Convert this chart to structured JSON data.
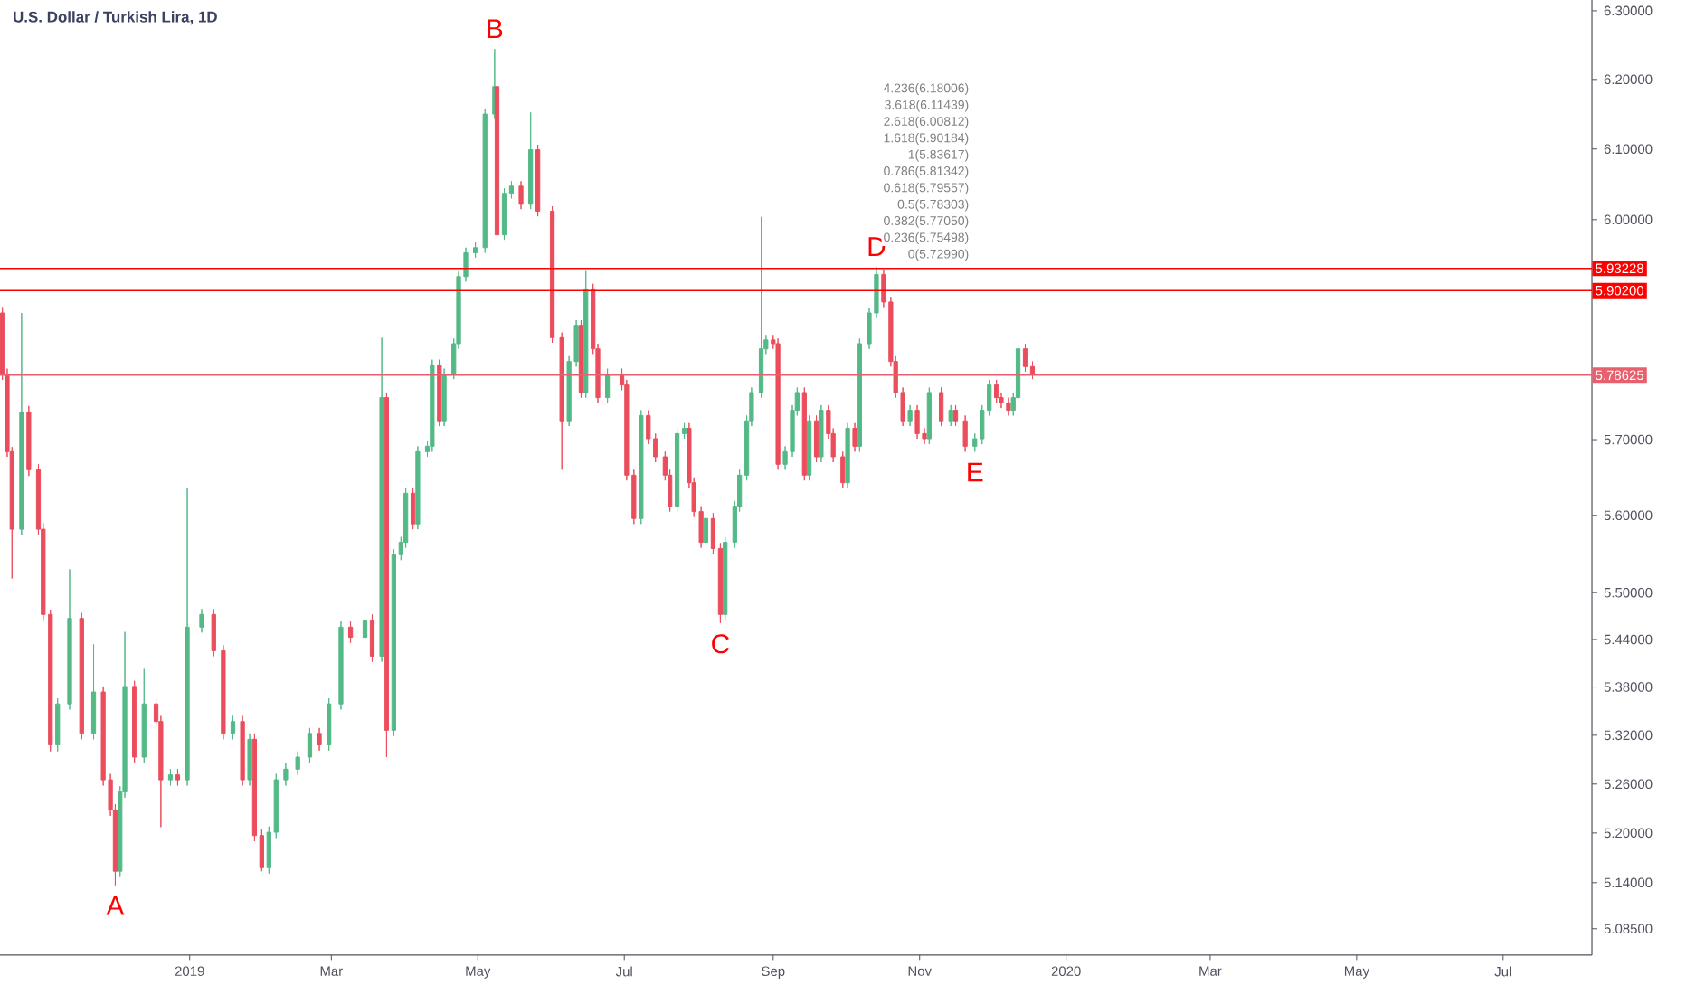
{
  "chart_data": {
    "type": "candlestick",
    "title": "U.S. Dollar / Turkish Lira, 1D",
    "x": [
      "2018-10-15",
      "2018-10-17",
      "2018-10-19",
      "2018-10-23",
      "2018-10-26",
      "2018-10-30",
      "2018-11-01",
      "2018-11-04",
      "2018-11-07",
      "2018-11-12",
      "2018-11-17",
      "2018-11-22",
      "2018-11-26",
      "2018-11-29",
      "2018-12-01",
      "2018-12-03",
      "2018-12-05",
      "2018-12-09",
      "2018-12-13",
      "2018-12-18",
      "2018-12-20",
      "2018-12-24",
      "2018-12-27",
      "2018-12-31",
      "2019-01-06",
      "2019-01-11",
      "2019-01-15",
      "2019-01-19",
      "2019-01-23",
      "2019-01-26",
      "2019-01-28",
      "2019-01-31",
      "2019-02-03",
      "2019-02-06",
      "2019-02-10",
      "2019-02-15",
      "2019-02-20",
      "2019-02-24",
      "2019-02-28",
      "2019-03-05",
      "2019-03-09",
      "2019-03-15",
      "2019-03-18",
      "2019-03-22",
      "2019-03-24",
      "2019-03-27",
      "2019-03-30",
      "2019-04-01",
      "2019-04-04",
      "2019-04-06",
      "2019-04-10",
      "2019-04-12",
      "2019-04-15",
      "2019-04-17",
      "2019-04-21",
      "2019-04-23",
      "2019-04-26",
      "2019-04-30",
      "2019-05-04",
      "2019-05-08",
      "2019-05-09",
      "2019-05-12",
      "2019-05-15",
      "2019-05-19",
      "2019-05-23",
      "2019-05-26",
      "2019-06-01",
      "2019-06-05",
      "2019-06-08",
      "2019-06-11",
      "2019-06-13",
      "2019-06-15",
      "2019-06-18",
      "2019-06-20",
      "2019-06-24",
      "2019-06-30",
      "2019-07-02",
      "2019-07-05",
      "2019-07-08",
      "2019-07-11",
      "2019-07-14",
      "2019-07-18",
      "2019-07-20",
      "2019-07-23",
      "2019-07-26",
      "2019-07-28",
      "2019-07-30",
      "2019-08-02",
      "2019-08-04",
      "2019-08-07",
      "2019-08-10",
      "2019-08-12",
      "2019-08-16",
      "2019-08-18",
      "2019-08-21",
      "2019-08-23",
      "2019-08-27",
      "2019-08-29",
      "2019-09-01",
      "2019-09-03",
      "2019-09-06",
      "2019-09-09",
      "2019-09-11",
      "2019-09-14",
      "2019-09-16",
      "2019-09-19",
      "2019-09-21",
      "2019-09-24",
      "2019-09-26",
      "2019-09-30",
      "2019-10-02",
      "2019-10-05",
      "2019-10-07",
      "2019-10-11",
      "2019-10-14",
      "2019-10-17",
      "2019-10-20",
      "2019-10-22",
      "2019-10-25",
      "2019-10-28",
      "2019-10-31",
      "2019-11-03",
      "2019-11-05",
      "2019-11-10",
      "2019-11-14",
      "2019-11-16",
      "2019-11-20",
      "2019-11-24",
      "2019-11-27",
      "2019-11-30",
      "2019-12-03",
      "2019-12-05",
      "2019-12-08",
      "2019-12-10",
      "2019-12-12",
      "2019-12-15",
      "2019-12-18"
    ],
    "ohlc": [
      [
        5.871,
        5.879,
        5.78,
        5.788
      ],
      [
        5.788,
        5.795,
        5.677,
        5.684
      ],
      [
        5.684,
        5.69,
        5.518,
        5.582
      ],
      [
        5.582,
        5.871,
        5.575,
        5.737
      ],
      [
        5.737,
        5.745,
        5.652,
        5.66
      ],
      [
        5.66,
        5.667,
        5.575,
        5.582
      ],
      [
        5.582,
        5.59,
        5.465,
        5.472
      ],
      [
        5.472,
        5.478,
        5.3,
        5.308
      ],
      [
        5.308,
        5.366,
        5.3,
        5.359
      ],
      [
        5.359,
        5.53,
        5.352,
        5.467
      ],
      [
        5.467,
        5.474,
        5.315,
        5.322
      ],
      [
        5.322,
        5.434,
        5.315,
        5.374
      ],
      [
        5.374,
        5.381,
        5.258,
        5.265
      ],
      [
        5.265,
        5.272,
        5.221,
        5.228
      ],
      [
        5.228,
        5.235,
        5.137,
        5.154
      ],
      [
        5.154,
        5.257,
        5.148,
        5.25
      ],
      [
        5.25,
        5.45,
        5.243,
        5.381
      ],
      [
        5.381,
        5.388,
        5.286,
        5.293
      ],
      [
        5.293,
        5.403,
        5.286,
        5.359
      ],
      [
        5.359,
        5.366,
        5.33,
        5.337
      ],
      [
        5.337,
        5.344,
        5.207,
        5.265
      ],
      [
        5.265,
        5.278,
        5.258,
        5.271
      ],
      [
        5.271,
        5.278,
        5.258,
        5.265
      ],
      [
        5.265,
        5.636,
        5.258,
        5.456
      ],
      [
        5.456,
        5.479,
        5.449,
        5.472
      ],
      [
        5.472,
        5.479,
        5.419,
        5.426
      ],
      [
        5.426,
        5.433,
        5.315,
        5.322
      ],
      [
        5.322,
        5.344,
        5.315,
        5.337
      ],
      [
        5.337,
        5.344,
        5.258,
        5.265
      ],
      [
        5.265,
        5.322,
        5.258,
        5.315
      ],
      [
        5.315,
        5.322,
        5.19,
        5.197
      ],
      [
        5.197,
        5.204,
        5.154,
        5.158
      ],
      [
        5.158,
        5.208,
        5.151,
        5.201
      ],
      [
        5.201,
        5.272,
        5.194,
        5.265
      ],
      [
        5.265,
        5.285,
        5.258,
        5.278
      ],
      [
        5.278,
        5.3,
        5.271,
        5.293
      ],
      [
        5.293,
        5.329,
        5.286,
        5.322
      ],
      [
        5.322,
        5.329,
        5.301,
        5.308
      ],
      [
        5.308,
        5.366,
        5.301,
        5.359
      ],
      [
        5.359,
        5.463,
        5.352,
        5.456
      ],
      [
        5.456,
        5.463,
        5.436,
        5.443
      ],
      [
        5.443,
        5.472,
        5.436,
        5.465
      ],
      [
        5.465,
        5.472,
        5.412,
        5.419
      ],
      [
        5.419,
        5.837,
        5.412,
        5.756
      ],
      [
        5.756,
        5.763,
        5.293,
        5.326
      ],
      [
        5.326,
        5.556,
        5.319,
        5.549
      ],
      [
        5.549,
        5.572,
        5.542,
        5.565
      ],
      [
        5.565,
        5.636,
        5.558,
        5.629
      ],
      [
        5.629,
        5.636,
        5.582,
        5.589
      ],
      [
        5.589,
        5.691,
        5.582,
        5.684
      ],
      [
        5.684,
        5.698,
        5.677,
        5.691
      ],
      [
        5.691,
        5.807,
        5.684,
        5.8
      ],
      [
        5.8,
        5.807,
        5.718,
        5.725
      ],
      [
        5.725,
        5.795,
        5.718,
        5.788
      ],
      [
        5.788,
        5.836,
        5.781,
        5.829
      ],
      [
        5.829,
        5.928,
        5.822,
        5.921
      ],
      [
        5.921,
        5.961,
        5.914,
        5.954
      ],
      [
        5.954,
        5.968,
        5.947,
        5.961
      ],
      [
        5.961,
        6.157,
        5.954,
        6.15
      ],
      [
        6.15,
        6.244,
        6.143,
        6.189
      ],
      [
        6.189,
        6.196,
        5.954,
        5.979
      ],
      [
        5.979,
        6.044,
        5.972,
        6.037
      ],
      [
        6.037,
        6.054,
        6.03,
        6.047
      ],
      [
        6.047,
        6.054,
        6.015,
        6.022
      ],
      [
        6.022,
        6.152,
        6.015,
        6.099
      ],
      [
        6.099,
        6.106,
        6.005,
        6.012
      ],
      [
        6.012,
        6.019,
        5.83,
        5.837
      ],
      [
        5.837,
        5.844,
        5.66,
        5.725
      ],
      [
        5.725,
        5.812,
        5.718,
        5.805
      ],
      [
        5.805,
        5.861,
        5.798,
        5.854
      ],
      [
        5.854,
        5.861,
        5.756,
        5.763
      ],
      [
        5.763,
        5.929,
        5.756,
        5.904
      ],
      [
        5.904,
        5.911,
        5.815,
        5.822
      ],
      [
        5.822,
        5.829,
        5.749,
        5.756
      ],
      [
        5.756,
        5.795,
        5.749,
        5.788
      ],
      [
        5.788,
        5.795,
        5.766,
        5.773
      ],
      [
        5.773,
        5.78,
        5.646,
        5.653
      ],
      [
        5.653,
        5.66,
        5.589,
        5.596
      ],
      [
        5.596,
        5.739,
        5.589,
        5.732
      ],
      [
        5.732,
        5.739,
        5.694,
        5.701
      ],
      [
        5.701,
        5.708,
        5.67,
        5.677
      ],
      [
        5.677,
        5.684,
        5.646,
        5.653
      ],
      [
        5.653,
        5.66,
        5.605,
        5.612
      ],
      [
        5.612,
        5.715,
        5.605,
        5.708
      ],
      [
        5.708,
        5.722,
        5.701,
        5.715
      ],
      [
        5.715,
        5.722,
        5.636,
        5.643
      ],
      [
        5.643,
        5.65,
        5.598,
        5.605
      ],
      [
        5.605,
        5.612,
        5.558,
        5.565
      ],
      [
        5.565,
        5.603,
        5.558,
        5.596
      ],
      [
        5.596,
        5.603,
        5.55,
        5.557
      ],
      [
        5.557,
        5.564,
        5.461,
        5.472
      ],
      [
        5.472,
        5.572,
        5.465,
        5.565
      ],
      [
        5.565,
        5.619,
        5.558,
        5.612
      ],
      [
        5.612,
        5.66,
        5.605,
        5.653
      ],
      [
        5.653,
        5.732,
        5.646,
        5.725
      ],
      [
        5.725,
        5.77,
        5.718,
        5.763
      ],
      [
        5.763,
        6.004,
        5.756,
        5.822
      ],
      [
        5.822,
        5.841,
        5.815,
        5.834
      ],
      [
        5.834,
        5.841,
        5.822,
        5.829
      ],
      [
        5.829,
        5.836,
        5.66,
        5.667
      ],
      [
        5.667,
        5.691,
        5.66,
        5.684
      ],
      [
        5.684,
        5.746,
        5.677,
        5.739
      ],
      [
        5.739,
        5.77,
        5.732,
        5.763
      ],
      [
        5.763,
        5.77,
        5.646,
        5.653
      ],
      [
        5.653,
        5.732,
        5.646,
        5.725
      ],
      [
        5.725,
        5.732,
        5.67,
        5.677
      ],
      [
        5.677,
        5.746,
        5.67,
        5.739
      ],
      [
        5.739,
        5.746,
        5.701,
        5.708
      ],
      [
        5.708,
        5.715,
        5.67,
        5.677
      ],
      [
        5.677,
        5.684,
        5.636,
        5.643
      ],
      [
        5.643,
        5.722,
        5.636,
        5.715
      ],
      [
        5.715,
        5.722,
        5.684,
        5.691
      ],
      [
        5.691,
        5.836,
        5.684,
        5.829
      ],
      [
        5.829,
        5.878,
        5.822,
        5.871
      ],
      [
        5.871,
        5.934,
        5.864,
        5.924
      ],
      [
        5.924,
        5.931,
        5.879,
        5.886
      ],
      [
        5.886,
        5.893,
        5.798,
        5.805
      ],
      [
        5.805,
        5.812,
        5.756,
        5.763
      ],
      [
        5.763,
        5.77,
        5.718,
        5.725
      ],
      [
        5.725,
        5.746,
        5.718,
        5.739
      ],
      [
        5.739,
        5.746,
        5.701,
        5.708
      ],
      [
        5.708,
        5.715,
        5.694,
        5.701
      ],
      [
        5.701,
        5.77,
        5.694,
        5.763
      ],
      [
        5.763,
        5.77,
        5.718,
        5.725
      ],
      [
        5.725,
        5.746,
        5.718,
        5.739
      ],
      [
        5.739,
        5.746,
        5.718,
        5.725
      ],
      [
        5.725,
        5.732,
        5.684,
        5.691
      ],
      [
        5.691,
        5.708,
        5.684,
        5.701
      ],
      [
        5.701,
        5.746,
        5.694,
        5.739
      ],
      [
        5.739,
        5.78,
        5.732,
        5.773
      ],
      [
        5.773,
        5.78,
        5.749,
        5.756
      ],
      [
        5.756,
        5.763,
        5.742,
        5.749
      ],
      [
        5.749,
        5.756,
        5.732,
        5.739
      ],
      [
        5.739,
        5.763,
        5.732,
        5.756
      ],
      [
        5.756,
        5.829,
        5.749,
        5.822
      ],
      [
        5.822,
        5.829,
        5.791,
        5.798
      ],
      [
        5.798,
        5.805,
        5.781,
        5.788
      ]
    ],
    "log": "y",
    "xlim": [
      "2018-10-14",
      "2020-08-07"
    ],
    "xticks": [
      {
        "value": "2019-01-01",
        "label": "2019"
      },
      {
        "value": "2019-03-01",
        "label": "Mar"
      },
      {
        "value": "2019-05-01",
        "label": "May"
      },
      {
        "value": "2019-07-01",
        "label": "Jul"
      },
      {
        "value": "2019-09-01",
        "label": "Sep"
      },
      {
        "value": "2019-11-01",
        "label": "Nov"
      },
      {
        "value": "2020-01-01",
        "label": "2020"
      },
      {
        "value": "2020-03-01",
        "label": "Mar"
      },
      {
        "value": "2020-05-01",
        "label": "May"
      },
      {
        "value": "2020-07-01",
        "label": "Jul"
      }
    ],
    "ylim": [
      5.054,
      6.316
    ],
    "yticks": [
      {
        "value": 5.085,
        "label": "5.08500"
      },
      {
        "value": 5.14,
        "label": "5.14000"
      },
      {
        "value": 5.2,
        "label": "5.20000"
      },
      {
        "value": 5.26,
        "label": "5.26000"
      },
      {
        "value": 5.32,
        "label": "5.32000"
      },
      {
        "value": 5.38,
        "label": "5.38000"
      },
      {
        "value": 5.44,
        "label": "5.44000"
      },
      {
        "value": 5.5,
        "label": "5.50000"
      },
      {
        "value": 5.6,
        "label": "5.60000"
      },
      {
        "value": 5.7,
        "label": "5.70000"
      },
      {
        "value": 6.0,
        "label": "6.00000"
      },
      {
        "value": 6.1,
        "label": "6.10000"
      },
      {
        "value": 6.2,
        "label": "6.20000"
      },
      {
        "value": 6.3,
        "label": "6.30000"
      }
    ],
    "ref_lines": [
      {
        "axis": "y",
        "value": 5.93228,
        "label": "5.93228",
        "color": "#ff0000"
      },
      {
        "axis": "y",
        "value": 5.902,
        "label": "5.90200",
        "color": "#ff0000"
      },
      {
        "axis": "y",
        "value": 5.78625,
        "label": "5.78625",
        "color": "#e8606e"
      }
    ],
    "annotations": [
      {
        "text": "A",
        "x": "2018-12-01",
        "y": 5.137
      },
      {
        "text": "B",
        "x": "2019-05-08",
        "y": 6.244
      },
      {
        "text": "C",
        "x": "2019-08-10",
        "y": 5.461
      },
      {
        "text": "D",
        "x": "2019-10-14",
        "y": 5.934
      },
      {
        "text": "E",
        "x": "2019-11-24",
        "y": 5.684
      },
      "4.236(6.18006)",
      "3.618(6.11439)",
      "2.618(6.00812)",
      "1.618(5.90184)",
      "1(5.83617)",
      "0.786(5.81342)",
      "0.618(5.79557)",
      "0.5(5.78303)",
      "0.382(5.77050)",
      "0.236(5.75498)",
      "0(5.72990)"
    ]
  }
}
